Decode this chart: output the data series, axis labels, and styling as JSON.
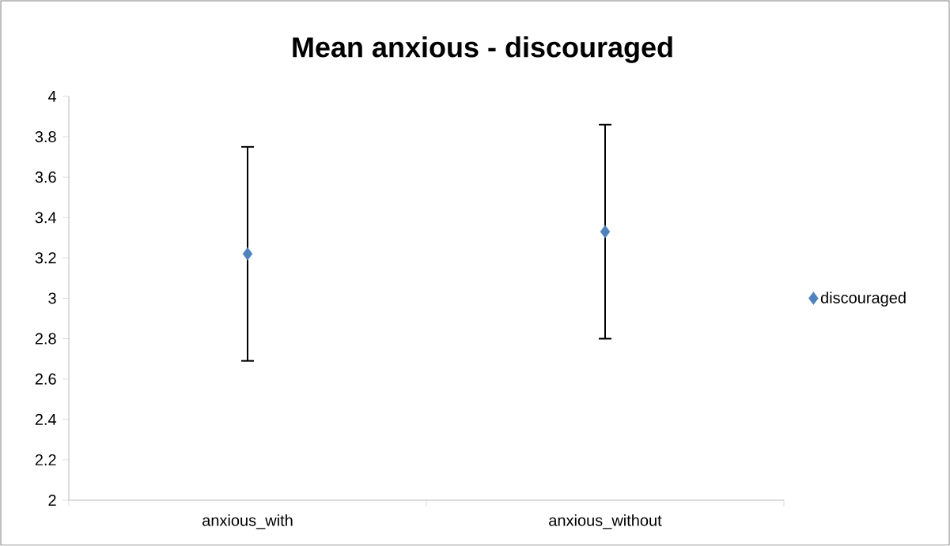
{
  "chart_data": {
    "type": "scatter",
    "title": "Mean anxious - discouraged",
    "categories": [
      "anxious_with",
      "anxious_without"
    ],
    "series": [
      {
        "name": "discouraged",
        "color": "#4f81bd",
        "values": [
          3.22,
          3.33
        ],
        "errors": [
          0.53,
          0.53
        ]
      }
    ],
    "ylim": [
      2,
      4
    ],
    "yticks": [
      2,
      2.2,
      2.4,
      2.6,
      2.8,
      3,
      3.2,
      3.4,
      3.6,
      3.8,
      4
    ],
    "marker": "diamond",
    "legend": "right",
    "grid": false
  }
}
